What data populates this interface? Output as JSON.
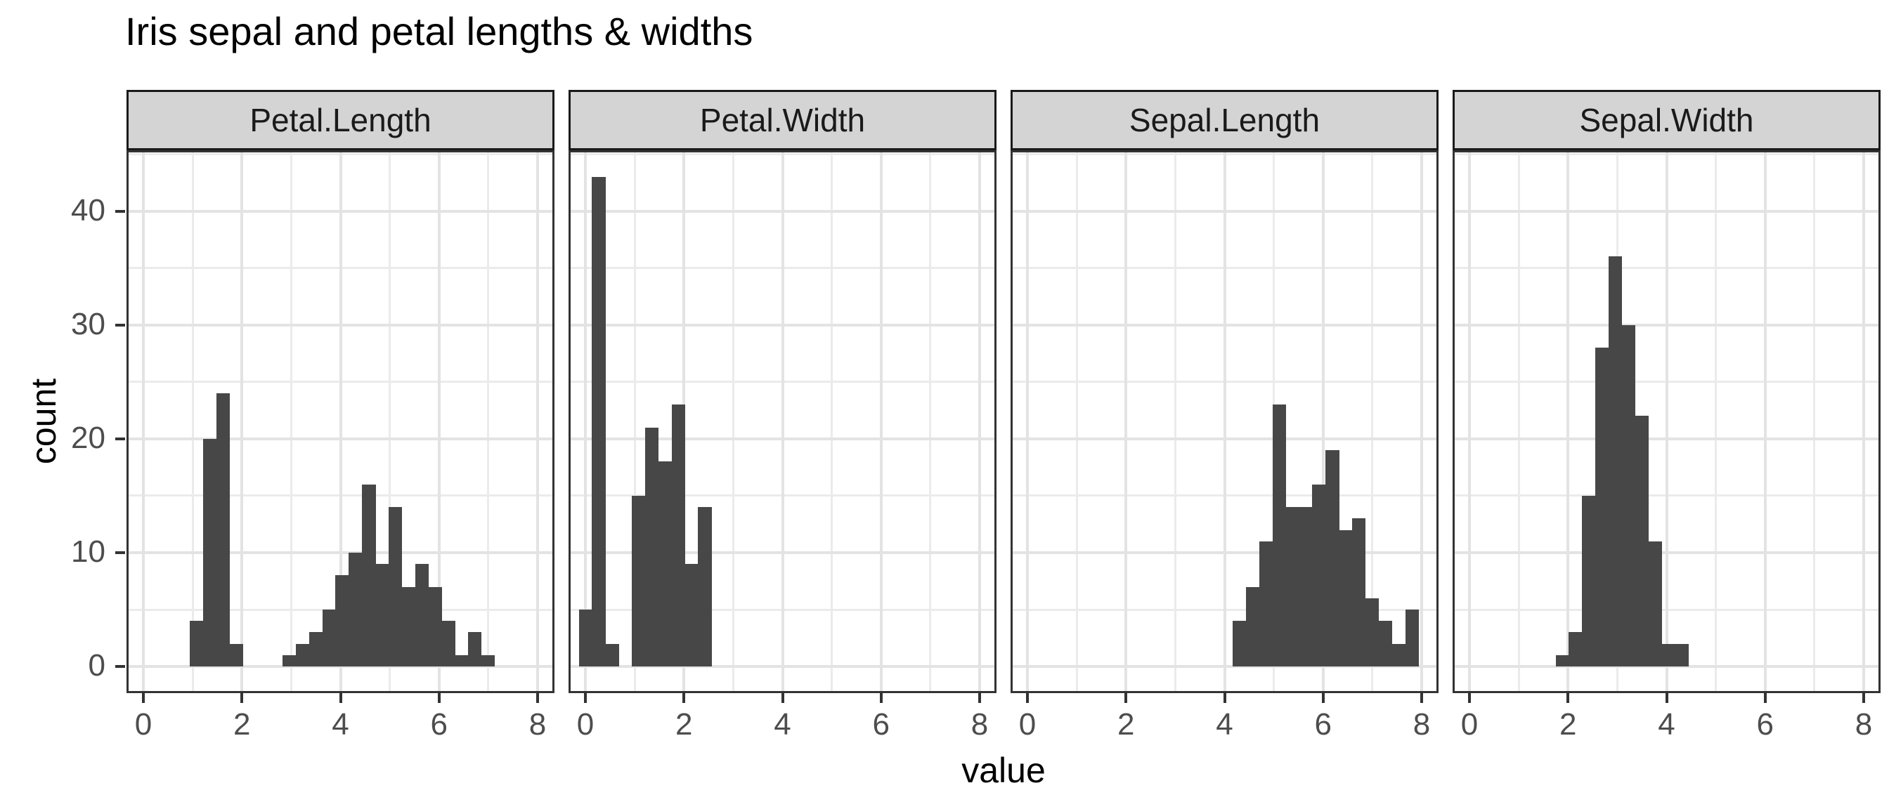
{
  "figure": {
    "background": "#FFFFFF"
  },
  "chart_data": {
    "type": "bar",
    "subtype": "histogram-faceted",
    "title": "Iris sepal and petal lengths & widths",
    "xlabel": "value",
    "ylabel": "count",
    "legend": "none",
    "x_ticks": [
      0,
      2,
      4,
      6,
      8
    ],
    "y_ticks": [
      0,
      10,
      20,
      30,
      40
    ],
    "xlim": [
      -0.3,
      8.3
    ],
    "ylim": [
      -2.15,
      45.15
    ],
    "binwidth": 0.268966,
    "grid": {
      "major_x": [
        0,
        2,
        4,
        6,
        8
      ],
      "minor_x": [
        1,
        3,
        5,
        7
      ],
      "major_y": [
        0,
        10,
        20,
        30,
        40
      ],
      "minor_y": [
        5,
        15,
        25,
        35,
        45
      ]
    },
    "facets": [
      {
        "label": "Petal.Length",
        "bins": [
          [
            1.076,
            4
          ],
          [
            1.345,
            20
          ],
          [
            1.614,
            24
          ],
          [
            1.883,
            2
          ],
          [
            2.959,
            1
          ],
          [
            3.228,
            2
          ],
          [
            3.497,
            3
          ],
          [
            3.766,
            5
          ],
          [
            4.034,
            8
          ],
          [
            4.303,
            10
          ],
          [
            4.572,
            16
          ],
          [
            4.841,
            9
          ],
          [
            5.11,
            14
          ],
          [
            5.379,
            7
          ],
          [
            5.648,
            9
          ],
          [
            5.917,
            7
          ],
          [
            6.186,
            4
          ],
          [
            6.455,
            1
          ],
          [
            6.724,
            3
          ],
          [
            6.993,
            1
          ]
        ]
      },
      {
        "label": "Petal.Width",
        "bins": [
          [
            0.0,
            5
          ],
          [
            0.269,
            43
          ],
          [
            0.538,
            2
          ],
          [
            1.076,
            15
          ],
          [
            1.345,
            21
          ],
          [
            1.614,
            18
          ],
          [
            1.883,
            23
          ],
          [
            2.152,
            9
          ],
          [
            2.421,
            14
          ]
        ]
      },
      {
        "label": "Sepal.Length",
        "bins": [
          [
            4.303,
            4
          ],
          [
            4.572,
            7
          ],
          [
            4.841,
            11
          ],
          [
            5.11,
            23
          ],
          [
            5.379,
            14
          ],
          [
            5.648,
            14
          ],
          [
            5.917,
            16
          ],
          [
            6.186,
            19
          ],
          [
            6.455,
            12
          ],
          [
            6.724,
            13
          ],
          [
            6.993,
            6
          ],
          [
            7.262,
            4
          ],
          [
            7.531,
            2
          ],
          [
            7.8,
            5
          ]
        ]
      },
      {
        "label": "Sepal.Width",
        "bins": [
          [
            1.883,
            1
          ],
          [
            2.152,
            3
          ],
          [
            2.421,
            15
          ],
          [
            2.69,
            28
          ],
          [
            2.959,
            36
          ],
          [
            3.228,
            30
          ],
          [
            3.497,
            22
          ],
          [
            3.766,
            11
          ],
          [
            4.034,
            2
          ],
          [
            4.303,
            2
          ]
        ]
      }
    ],
    "colors": {
      "bar_fill": "#474747",
      "strip_bg": "#D4D4D4",
      "strip_border": "#1A1A1A",
      "strip_text": "#1A1A1A",
      "panel_bg": "#FFFFFF",
      "panel_border": "#333333",
      "grid_major": "#E3E3E3",
      "grid_minor": "#EBEBEB",
      "tick_mark": "#333333",
      "tick_label": "#4D4D4D",
      "axis_title": "#000000",
      "title": "#000000"
    }
  }
}
